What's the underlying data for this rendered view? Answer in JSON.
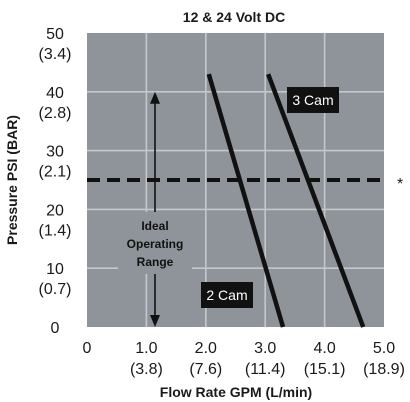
{
  "chart_data": {
    "type": "line",
    "title": "12 & 24 Volt DC",
    "xlabel": "Flow Rate GPM (L/min)",
    "ylabel": "Pressure PSI (BAR)",
    "xlim": [
      0,
      5
    ],
    "ylim": [
      0,
      50
    ],
    "x_ticks": [
      {
        "v": 0,
        "l1": "0",
        "l2": ""
      },
      {
        "v": 1,
        "l1": "1.0",
        "l2": "(3.8)"
      },
      {
        "v": 2,
        "l1": "2.0",
        "l2": "(7.6)"
      },
      {
        "v": 3,
        "l1": "3.0",
        "l2": "(11.4)"
      },
      {
        "v": 4,
        "l1": "4.0",
        "l2": "(15.1)"
      },
      {
        "v": 5,
        "l1": "5.0",
        "l2": "(18.9)"
      }
    ],
    "y_ticks": [
      {
        "v": 0,
        "l1": "0",
        "l2": ""
      },
      {
        "v": 10,
        "l1": "10",
        "l2": "(0.7)"
      },
      {
        "v": 20,
        "l1": "20",
        "l2": "(1.4)"
      },
      {
        "v": 30,
        "l1": "30",
        "l2": "(2.1)"
      },
      {
        "v": 40,
        "l1": "40",
        "l2": "(2.8)"
      },
      {
        "v": 50,
        "l1": "50",
        "l2": "(3.4)"
      }
    ],
    "series": [
      {
        "name": "2 Cam",
        "x": [
          2.05,
          3.3
        ],
        "y": [
          43,
          0
        ]
      },
      {
        "name": "3 Cam",
        "x": [
          3.05,
          4.65
        ],
        "y": [
          43,
          0
        ]
      }
    ],
    "reference_line": {
      "y": 25,
      "label": "*"
    },
    "range_annotation": {
      "label": [
        "Ideal",
        "Operating",
        "Range"
      ],
      "y_from": 0,
      "y_to": 40
    },
    "grid": true,
    "plot_bg": "#8e9499",
    "grid_color": "#c4c8cc",
    "line_color": "#111111"
  }
}
